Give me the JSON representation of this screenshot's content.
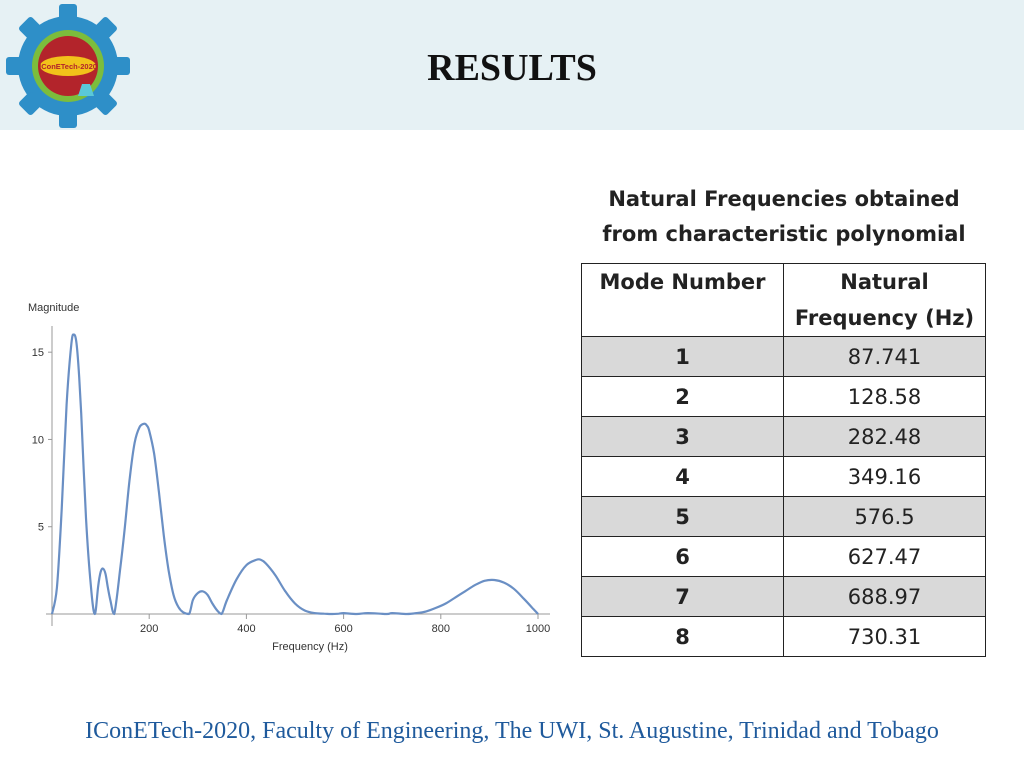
{
  "header": {
    "title": "RESULTS",
    "logo_text": "IConETech-2020"
  },
  "table": {
    "caption_line1": "Natural Frequencies obtained",
    "caption_line2": "from characteristic polynomial",
    "col1_header": "Mode Number",
    "col2_header_line1": "Natural",
    "col2_header_line2": "Frequency (Hz)",
    "rows": [
      {
        "mode": "1",
        "freq": "87.741"
      },
      {
        "mode": "2",
        "freq": "128.58"
      },
      {
        "mode": "3",
        "freq": "282.48"
      },
      {
        "mode": "4",
        "freq": "349.16"
      },
      {
        "mode": "5",
        "freq": "576.5"
      },
      {
        "mode": "6",
        "freq": "627.47"
      },
      {
        "mode": "7",
        "freq": "688.97"
      },
      {
        "mode": "8",
        "freq": "730.31"
      }
    ]
  },
  "chart_data": {
    "type": "line",
    "title": "",
    "xlabel": "Frequency (Hz)",
    "ylabel": "Magnitude",
    "xlim": [
      0,
      1000
    ],
    "ylim": [
      0,
      16.5
    ],
    "xticks": [
      200,
      400,
      600,
      800,
      1000
    ],
    "yticks": [
      5,
      10,
      15
    ],
    "grid": false,
    "color": "#6a8fc4",
    "series": [
      {
        "x": [
          0,
          10,
          20,
          30,
          40,
          45,
          50,
          55,
          60,
          70,
          80,
          88,
          95,
          100,
          105,
          110,
          115,
          120,
          128,
          140,
          150,
          160,
          170,
          180,
          190,
          195,
          200,
          210,
          220,
          230,
          240,
          250,
          260,
          270,
          282,
          290,
          300,
          310,
          320,
          330,
          340,
          349,
          360,
          380,
          400,
          420,
          430,
          440,
          460,
          480,
          500,
          520,
          540,
          560,
          577,
          590,
          600,
          627,
          650,
          689,
          700,
          730,
          750,
          770,
          790,
          810,
          830,
          850,
          870,
          890,
          910,
          930,
          950,
          970,
          990,
          1000
        ],
        "y": [
          0,
          1.5,
          6,
          12,
          15.5,
          16,
          15.6,
          14,
          11.5,
          5.5,
          1.6,
          0,
          1.6,
          2.4,
          2.6,
          2.3,
          1.5,
          0.8,
          0,
          2.5,
          5,
          7.8,
          9.8,
          10.7,
          10.9,
          10.8,
          10.5,
          9.2,
          7,
          4.5,
          2.5,
          1.1,
          0.4,
          0.1,
          0,
          0.8,
          1.2,
          1.3,
          1.1,
          0.6,
          0.2,
          0,
          0.8,
          2,
          2.8,
          3.1,
          3.1,
          2.9,
          2.2,
          1.3,
          0.6,
          0.2,
          0.05,
          0.02,
          0,
          0.02,
          0.05,
          0,
          0.05,
          0,
          0.05,
          0,
          0.05,
          0.15,
          0.35,
          0.6,
          0.95,
          1.3,
          1.65,
          1.9,
          1.95,
          1.8,
          1.45,
          0.9,
          0.3,
          0
        ]
      }
    ]
  },
  "footer": "IConETech-2020, Faculty of Engineering, The UWI, St. Augustine, Trinidad and Tobago"
}
